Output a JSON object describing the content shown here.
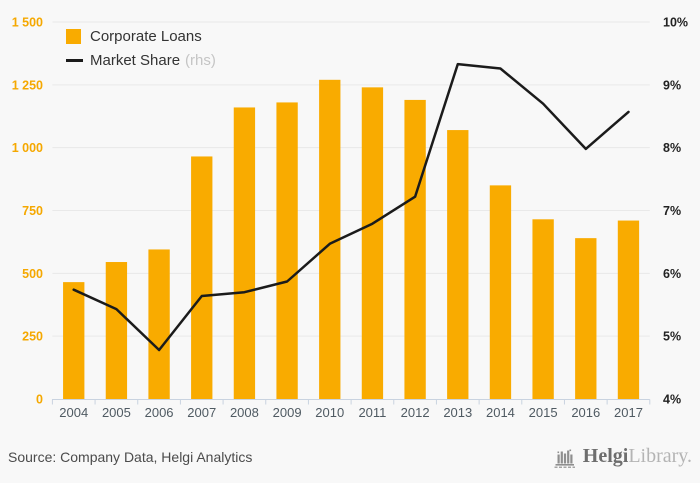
{
  "legend": {
    "bars_label": "Corporate Loans",
    "line_label": "Market Share",
    "line_suffix": "(rhs)"
  },
  "chart_data": {
    "type": "bar",
    "title": "",
    "categories": [
      "2004",
      "2005",
      "2006",
      "2007",
      "2008",
      "2009",
      "2010",
      "2011",
      "2012",
      "2013",
      "2014",
      "2015",
      "2016",
      "2017"
    ],
    "series": [
      {
        "name": "Corporate Loans",
        "type": "bar",
        "axis": "left",
        "values": [
          465,
          545,
          595,
          965,
          1160,
          1180,
          1270,
          1240,
          1190,
          1070,
          850,
          715,
          640,
          710
        ]
      },
      {
        "name": "Market Share (rhs)",
        "type": "line",
        "axis": "right",
        "values": [
          5.74,
          5.43,
          4.78,
          5.64,
          5.7,
          5.87,
          6.47,
          6.79,
          7.22,
          9.33,
          9.26,
          8.7,
          7.98,
          8.57
        ]
      }
    ],
    "left_axis": {
      "min": 0,
      "max": 1500,
      "tick_step": 250,
      "tick_labels": [
        "0",
        "250",
        "500",
        "750",
        "1 000",
        "1 250",
        "1 500"
      ]
    },
    "right_axis": {
      "min": 4,
      "max": 10,
      "tick_step": 1,
      "tick_labels": [
        "4%",
        "5%",
        "6%",
        "7%",
        "8%",
        "9%",
        "10%"
      ]
    },
    "grid": true,
    "legend_position": "top-left"
  },
  "colors": {
    "bar": "#F9AB00",
    "line": "#1B1B1B",
    "grid": "#E9E9E9",
    "axis": "#C9D3E0",
    "left_axis_labels": "#F5A800",
    "right_axis_labels": "#222222",
    "x_axis_labels": "#4F5A62",
    "background": "#F8F8F8"
  },
  "footer": {
    "source": "Source: Company Data, Helgi Analytics",
    "logo_primary": "Helgi",
    "logo_secondary": "Library."
  }
}
